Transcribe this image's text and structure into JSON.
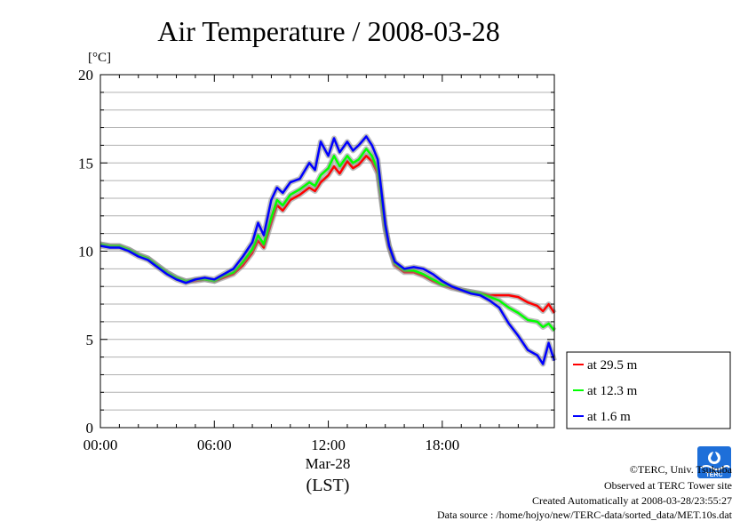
{
  "chart_data": {
    "type": "line",
    "title": "Air Temperature / 2008-03-28",
    "ylabel": "[°C]",
    "ylim": [
      0,
      20
    ],
    "yticks": [
      0,
      5,
      10,
      15,
      20
    ],
    "xlim": [
      0,
      23.9
    ],
    "xticks": [
      {
        "hour": 0,
        "label": "00:00"
      },
      {
        "hour": 6,
        "label": "06:00"
      },
      {
        "hour": 12,
        "label": "12:00"
      },
      {
        "hour": 18,
        "label": "18:00"
      }
    ],
    "date_label": "Mar-28",
    "xlabel": "(LST)",
    "grid": "horizontal",
    "legend_position": "lower-right-outside",
    "series": [
      {
        "name": "at 29.5 m",
        "color": "#ff0000",
        "x": [
          0,
          0.5,
          1,
          1.5,
          2,
          2.5,
          3,
          3.5,
          4,
          4.5,
          5,
          5.5,
          6,
          6.5,
          7,
          7.5,
          8,
          8.3,
          8.6,
          9,
          9.3,
          9.6,
          10,
          10.5,
          11,
          11.3,
          11.6,
          12,
          12.3,
          12.6,
          13,
          13.3,
          13.6,
          14,
          14.3,
          14.6,
          15,
          15.2,
          15.5,
          16,
          16.5,
          17,
          17.5,
          18,
          18.5,
          19,
          19.5,
          20,
          20.5,
          21,
          21.5,
          22,
          22.5,
          23,
          23.3,
          23.6,
          23.9
        ],
        "y": [
          10.4,
          10.3,
          10.3,
          10.1,
          9.8,
          9.6,
          9.2,
          8.8,
          8.5,
          8.3,
          8.3,
          8.4,
          8.3,
          8.5,
          8.7,
          9.2,
          9.9,
          10.6,
          10.2,
          11.6,
          12.6,
          12.3,
          12.9,
          13.2,
          13.6,
          13.4,
          13.9,
          14.3,
          14.8,
          14.4,
          15.1,
          14.7,
          14.9,
          15.4,
          15.1,
          14.4,
          11.2,
          10.2,
          9.2,
          8.8,
          8.8,
          8.6,
          8.3,
          8.1,
          7.9,
          7.8,
          7.7,
          7.6,
          7.5,
          7.5,
          7.5,
          7.4,
          7.1,
          6.9,
          6.6,
          7.0,
          6.5
        ]
      },
      {
        "name": "at 12.3 m",
        "color": "#00ff00",
        "x": [
          0,
          0.5,
          1,
          1.5,
          2,
          2.5,
          3,
          3.5,
          4,
          4.5,
          5,
          5.5,
          6,
          6.5,
          7,
          7.5,
          8,
          8.3,
          8.6,
          9,
          9.3,
          9.6,
          10,
          10.5,
          11,
          11.3,
          11.6,
          12,
          12.3,
          12.6,
          13,
          13.3,
          13.6,
          14,
          14.3,
          14.6,
          15,
          15.2,
          15.5,
          16,
          16.5,
          17,
          17.5,
          18,
          18.5,
          19,
          19.5,
          20,
          20.5,
          21,
          21.5,
          22,
          22.5,
          23,
          23.3,
          23.6,
          23.9
        ],
        "y": [
          10.4,
          10.3,
          10.3,
          10.1,
          9.8,
          9.6,
          9.2,
          8.8,
          8.5,
          8.3,
          8.4,
          8.4,
          8.3,
          8.6,
          8.8,
          9.4,
          10.1,
          10.9,
          10.4,
          11.9,
          12.9,
          12.6,
          13.2,
          13.5,
          13.9,
          13.7,
          14.3,
          14.7,
          15.4,
          14.8,
          15.4,
          15.0,
          15.2,
          15.8,
          15.4,
          14.6,
          11.3,
          10.3,
          9.3,
          8.9,
          8.9,
          8.7,
          8.4,
          8.1,
          8.0,
          7.8,
          7.7,
          7.6,
          7.4,
          7.2,
          6.8,
          6.5,
          6.1,
          6.0,
          5.7,
          5.9,
          5.5
        ]
      },
      {
        "name": "at 1.6 m",
        "color": "#0000ff",
        "x": [
          0,
          0.5,
          1,
          1.5,
          2,
          2.5,
          3,
          3.5,
          4,
          4.5,
          5,
          5.5,
          6,
          6.5,
          7,
          7.5,
          8,
          8.3,
          8.6,
          9,
          9.3,
          9.6,
          10,
          10.5,
          11,
          11.3,
          11.6,
          12,
          12.3,
          12.6,
          13,
          13.3,
          13.6,
          14,
          14.3,
          14.6,
          15,
          15.2,
          15.5,
          16,
          16.5,
          17,
          17.5,
          18,
          18.5,
          19,
          19.5,
          20,
          20.5,
          21,
          21.5,
          22,
          22.5,
          23,
          23.3,
          23.6,
          23.9
        ],
        "y": [
          10.3,
          10.2,
          10.2,
          10.0,
          9.7,
          9.5,
          9.1,
          8.7,
          8.4,
          8.2,
          8.4,
          8.5,
          8.4,
          8.7,
          9.0,
          9.7,
          10.5,
          11.6,
          10.9,
          12.9,
          13.6,
          13.3,
          13.9,
          14.1,
          15.0,
          14.6,
          16.2,
          15.4,
          16.4,
          15.6,
          16.2,
          15.7,
          16.0,
          16.5,
          16.0,
          15.2,
          11.5,
          10.3,
          9.4,
          9.0,
          9.1,
          9.0,
          8.7,
          8.3,
          8.0,
          7.8,
          7.6,
          7.5,
          7.2,
          6.8,
          5.9,
          5.2,
          4.4,
          4.1,
          3.6,
          4.8,
          3.8
        ]
      }
    ]
  },
  "credits": [
    "©TERC, Univ. Tsukuba",
    "Observed at TERC Tower site",
    "Created Automatically at 2008-03-28/23:55:27",
    "Data source : /home/hojyo/new/TERC-data/sorted_data/MET.10s.dat"
  ],
  "logo": {
    "icon": "terc-logo-icon",
    "color": "#1e6fd9",
    "text": "TERC"
  }
}
